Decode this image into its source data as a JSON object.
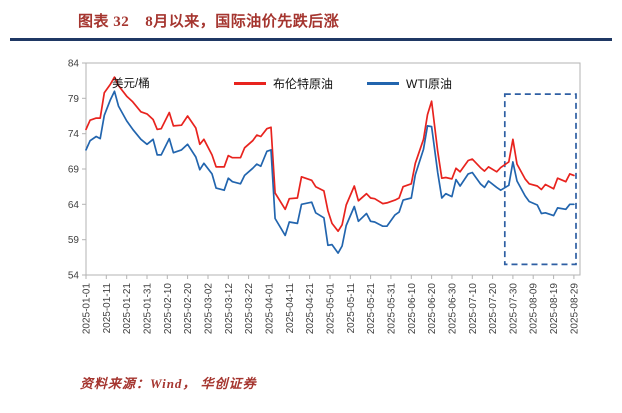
{
  "header": {
    "tag": "图表 32",
    "title": "8月以来，国际油价先跌后涨"
  },
  "footer": {
    "source": "资料来源：Wind， 华创证券"
  },
  "colors": {
    "title": "#a5352f",
    "rule_line": "#1f3864",
    "source": "#a5352f",
    "axis": "#b3b3b3",
    "highlight": "#2e5fa3"
  },
  "chart_data": {
    "type": "line",
    "unit_label": "美元/桶",
    "ylim": [
      54,
      84
    ],
    "yticks": [
      54,
      59,
      64,
      69,
      74,
      79,
      84
    ],
    "grid": false,
    "legend_position": "top-center",
    "x_domain": [
      "2025-01-01",
      "2025-09-01"
    ],
    "x_tick_labels": [
      "2025-01-01",
      "2025-01-11",
      "2025-01-21",
      "2025-01-31",
      "2025-02-10",
      "2025-02-20",
      "2025-03-02",
      "2025-03-12",
      "2025-03-22",
      "2025-04-01",
      "2025-04-11",
      "2025-04-21",
      "2025-05-01",
      "2025-05-11",
      "2025-05-21",
      "2025-05-31",
      "2025-06-10",
      "2025-06-20",
      "2025-06-30",
      "2025-07-10",
      "2025-07-20",
      "2025-07-30",
      "2025-08-09",
      "2025-08-19",
      "2025-08-29"
    ],
    "x": [
      "2025-01-01",
      "2025-01-03",
      "2025-01-06",
      "2025-01-08",
      "2025-01-10",
      "2025-01-13",
      "2025-01-15",
      "2025-01-17",
      "2025-01-21",
      "2025-01-24",
      "2025-01-28",
      "2025-01-31",
      "2025-02-03",
      "2025-02-05",
      "2025-02-07",
      "2025-02-11",
      "2025-02-13",
      "2025-02-17",
      "2025-02-20",
      "2025-02-24",
      "2025-02-26",
      "2025-02-28",
      "2025-03-04",
      "2025-03-06",
      "2025-03-10",
      "2025-03-12",
      "2025-03-14",
      "2025-03-18",
      "2025-03-20",
      "2025-03-24",
      "2025-03-26",
      "2025-03-28",
      "2025-03-31",
      "2025-04-02",
      "2025-04-04",
      "2025-04-09",
      "2025-04-11",
      "2025-04-15",
      "2025-04-17",
      "2025-04-22",
      "2025-04-24",
      "2025-04-28",
      "2025-04-30",
      "2025-05-02",
      "2025-05-05",
      "2025-05-07",
      "2025-05-09",
      "2025-05-13",
      "2025-05-15",
      "2025-05-19",
      "2025-05-21",
      "2025-05-23",
      "2025-05-27",
      "2025-05-29",
      "2025-06-02",
      "2025-06-04",
      "2025-06-06",
      "2025-06-10",
      "2025-06-12",
      "2025-06-16",
      "2025-06-18",
      "2025-06-20",
      "2025-06-23",
      "2025-06-25",
      "2025-06-27",
      "2025-06-30",
      "2025-07-02",
      "2025-07-04",
      "2025-07-08",
      "2025-07-10",
      "2025-07-14",
      "2025-07-16",
      "2025-07-18",
      "2025-07-22",
      "2025-07-24",
      "2025-07-28",
      "2025-07-30",
      "2025-08-01",
      "2025-08-05",
      "2025-08-07",
      "2025-08-11",
      "2025-08-13",
      "2025-08-15",
      "2025-08-19",
      "2025-08-21",
      "2025-08-25",
      "2025-08-27",
      "2025-08-29"
    ],
    "series": [
      {
        "key": "brent",
        "name": "布伦特原油",
        "color": "#e8231e",
        "values": [
          74.6,
          75.9,
          76.2,
          76.2,
          79.8,
          81.0,
          82.0,
          80.8,
          79.3,
          78.5,
          77.1,
          76.8,
          76.0,
          74.6,
          74.7,
          77.0,
          75.1,
          75.2,
          76.5,
          74.8,
          72.5,
          73.2,
          71.0,
          69.3,
          69.3,
          70.9,
          70.6,
          70.6,
          72.0,
          73.0,
          73.8,
          73.6,
          74.7,
          74.9,
          65.6,
          63.3,
          64.8,
          64.9,
          67.9,
          67.4,
          66.5,
          65.9,
          63.1,
          61.3,
          60.2,
          61.1,
          63.9,
          66.6,
          64.5,
          65.5,
          64.9,
          64.8,
          64.1,
          64.2,
          64.6,
          64.9,
          66.5,
          66.9,
          69.8,
          73.2,
          76.7,
          78.6,
          71.5,
          67.7,
          67.8,
          67.6,
          69.1,
          68.6,
          70.2,
          70.4,
          69.2,
          68.7,
          69.3,
          68.6,
          69.2,
          70.0,
          73.2,
          69.7,
          67.6,
          66.9,
          66.6,
          66.1,
          66.8,
          66.2,
          67.7,
          67.2,
          68.3,
          68.1
        ]
      },
      {
        "key": "wti",
        "name": "WTI原油",
        "color": "#2265ae",
        "values": [
          71.7,
          73.0,
          73.6,
          73.3,
          76.6,
          78.8,
          80.0,
          77.9,
          75.8,
          74.6,
          73.2,
          72.5,
          73.2,
          71.0,
          71.0,
          73.3,
          71.3,
          71.7,
          72.5,
          70.7,
          68.9,
          69.8,
          68.3,
          66.3,
          66.0,
          67.7,
          67.2,
          66.9,
          68.1,
          69.1,
          69.7,
          69.4,
          71.5,
          71.7,
          62.0,
          59.6,
          61.5,
          61.3,
          64.0,
          64.3,
          62.8,
          62.1,
          58.2,
          58.3,
          57.1,
          58.1,
          61.0,
          63.7,
          61.6,
          62.7,
          61.6,
          61.5,
          60.9,
          60.9,
          62.5,
          62.9,
          64.6,
          64.9,
          68.2,
          71.8,
          75.1,
          75.0,
          68.5,
          64.9,
          65.5,
          65.1,
          67.5,
          66.6,
          68.3,
          68.5,
          66.9,
          66.4,
          67.3,
          66.4,
          66.0,
          66.7,
          70.0,
          67.3,
          65.2,
          64.4,
          63.9,
          62.7,
          62.8,
          62.4,
          63.5,
          63.3,
          64.0,
          64.0
        ]
      }
    ],
    "highlight_box": {
      "x_start": "2025-07-26",
      "x_end": "2025-08-30",
      "y_top": 79.6,
      "y_bottom": 55.5
    }
  }
}
